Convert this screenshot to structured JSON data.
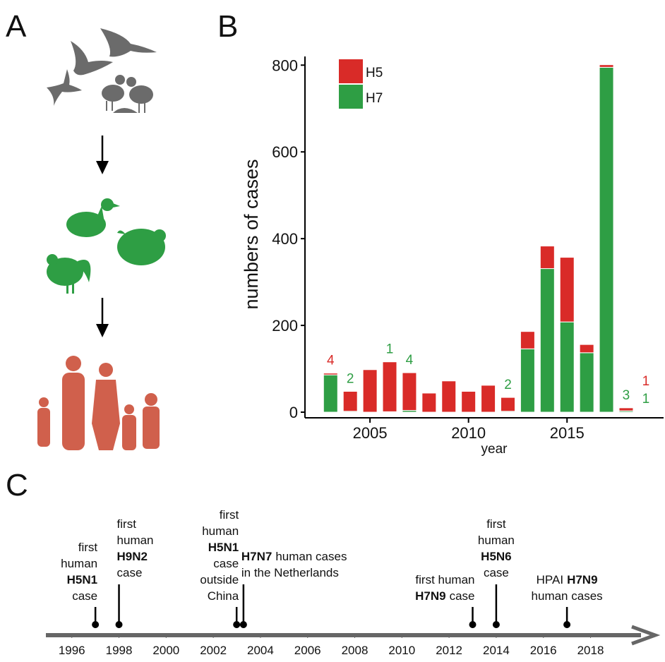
{
  "panel_a": {
    "label": "A"
  },
  "chart_data": [
    {
      "type": "bar",
      "label": "B",
      "stacked": true,
      "x": [
        2003,
        2004,
        2005,
        2006,
        2007,
        2008,
        2009,
        2010,
        2011,
        2012,
        2013,
        2014,
        2015,
        2016,
        2017,
        2018,
        2019
      ],
      "series": [
        {
          "name": "H7",
          "color": "#2e9e44",
          "values": [
            86,
            2,
            0,
            1,
            4,
            0,
            0,
            0,
            0,
            2,
            146,
            331,
            208,
            137,
            795,
            3,
            1
          ]
        },
        {
          "name": "H5",
          "color": "#d92b28",
          "values": [
            4,
            46,
            98,
            115,
            87,
            44,
            72,
            48,
            62,
            32,
            40,
            52,
            149,
            19,
            6,
            7,
            1
          ]
        }
      ],
      "ylabel": "numbers of cases",
      "xlabel": "year",
      "ylim": [
        0,
        820
      ],
      "yticks": [
        0,
        200,
        400,
        600,
        800
      ],
      "xlim": [
        2001.7,
        2019.9
      ],
      "xticks": [
        2005,
        2010,
        2015
      ],
      "legend": "upper left"
    },
    {
      "type": "timeline",
      "label": "C",
      "xlim": [
        1994.9,
        2020.5
      ],
      "xticks": [
        1996,
        1998,
        2000,
        2002,
        2004,
        2006,
        2008,
        2010,
        2012,
        2014,
        2016,
        2018
      ],
      "events": [
        {
          "x": 1997,
          "align": "right",
          "lines": [
            [
              {
                "text": "first",
                "bold": false
              }
            ],
            [
              {
                "text": "human",
                "bold": false
              }
            ],
            [
              {
                "text": "H5N1",
                "bold": true
              }
            ],
            [
              {
                "text": "case",
                "bold": false
              }
            ]
          ]
        },
        {
          "x": 1998,
          "align": "left",
          "lines": [
            [
              {
                "text": "first",
                "bold": false
              }
            ],
            [
              {
                "text": "human",
                "bold": false
              }
            ],
            [
              {
                "text": "H9N2",
                "bold": true
              }
            ],
            [
              {
                "text": "case",
                "bold": false
              }
            ]
          ]
        },
        {
          "x": 2002.99,
          "align": "right",
          "lines": [
            [
              {
                "text": "first",
                "bold": false
              }
            ],
            [
              {
                "text": "human",
                "bold": false
              }
            ],
            [
              {
                "text": "H5N1",
                "bold": true
              }
            ],
            [
              {
                "text": "case",
                "bold": false
              }
            ],
            [
              {
                "text": "outside",
                "bold": false
              }
            ],
            [
              {
                "text": "China",
                "bold": false
              }
            ]
          ]
        },
        {
          "x": 2003.28,
          "align": "left",
          "lines": [
            [
              {
                "text": "H7N7",
                "bold": true
              },
              {
                "text": "human cases",
                "bold": false
              }
            ],
            [
              {
                "text": "in the Netherlands",
                "bold": false
              }
            ]
          ]
        },
        {
          "x": 2013,
          "align": "right",
          "lines": [
            [
              {
                "text": "first human",
                "bold": false
              }
            ],
            [
              {
                "text": "H7N9",
                "bold": true
              },
              {
                "text": "case",
                "bold": false
              }
            ]
          ]
        },
        {
          "x": 2014,
          "align": "center",
          "lines": [
            [
              {
                "text": "first",
                "bold": false
              }
            ],
            [
              {
                "text": "human",
                "bold": false
              }
            ],
            [
              {
                "text": "H5N6",
                "bold": true
              }
            ],
            [
              {
                "text": "case",
                "bold": false
              }
            ]
          ]
        },
        {
          "x": 2017,
          "align": "center",
          "lines": [
            [
              {
                "text": "HPAI",
                "bold": false
              },
              {
                "text": "H7N9",
                "bold": true
              }
            ],
            [
              {
                "text": "human cases",
                "bold": false
              }
            ]
          ]
        }
      ]
    }
  ]
}
